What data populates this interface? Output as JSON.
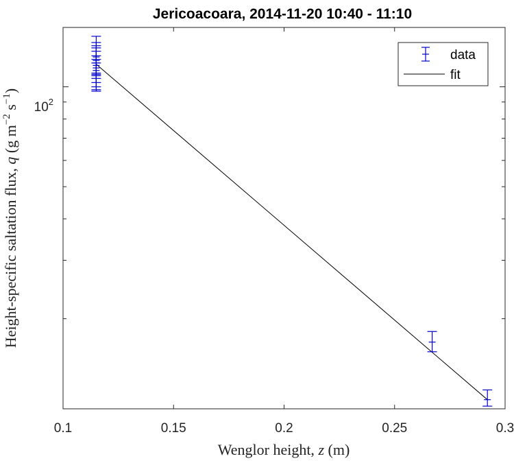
{
  "chart_data": {
    "type": "scatter",
    "title": "Jericoacoara, 2014-11-20 10:40 - 11:10",
    "xlabel": {
      "pre": "Wenglor height, ",
      "var": "z",
      "post": " (m)"
    },
    "ylabel": {
      "pre": "Height-specific saltation flux, ",
      "var": "q",
      "post": " (g m",
      "sup1": "−2",
      "mid": " s",
      "sup2": "−1",
      "end": ")"
    },
    "xlim": [
      0.1,
      0.3
    ],
    "ylim": [
      10.7,
      151
    ],
    "yscale": "log",
    "xticks": [
      0.1,
      0.15,
      0.2,
      0.25,
      0.3
    ],
    "xtick_labels": [
      "0.1",
      "0.15",
      "0.2",
      "0.25",
      "0.3"
    ],
    "ytick_major": {
      "base": "10",
      "exp": "2"
    },
    "grid": false,
    "legend": {
      "position": "top-right",
      "entries": [
        "data",
        "fit"
      ]
    },
    "series": [
      {
        "name": "data",
        "color": "#0000cc",
        "marker": "errorbar",
        "points": [
          {
            "x": 0.115,
            "y": 123,
            "ylow": 110,
            "yhigh": 142
          },
          {
            "x": 0.115,
            "y": 120,
            "ylow": 109,
            "yhigh": 136
          },
          {
            "x": 0.115,
            "y": 118,
            "ylow": 108,
            "yhigh": 133
          },
          {
            "x": 0.115,
            "y": 116,
            "ylow": 106,
            "yhigh": 131
          },
          {
            "x": 0.115,
            "y": 114,
            "ylow": 103,
            "yhigh": 128
          },
          {
            "x": 0.115,
            "y": 112,
            "ylow": 100,
            "yhigh": 124
          },
          {
            "x": 0.115,
            "y": 110,
            "ylow": 98,
            "yhigh": 121
          },
          {
            "x": 0.115,
            "y": 108,
            "ylow": 97,
            "yhigh": 118
          },
          {
            "x": 0.267,
            "y": 17.0,
            "ylow": 15.9,
            "yhigh": 18.3
          },
          {
            "x": 0.292,
            "y": 11.4,
            "ylow": 10.9,
            "yhigh": 12.2
          }
        ]
      },
      {
        "name": "fit",
        "color": "#000000",
        "type": "line",
        "x": [
          0.115,
          0.292
        ],
        "y": [
          117,
          11.4
        ]
      }
    ]
  }
}
